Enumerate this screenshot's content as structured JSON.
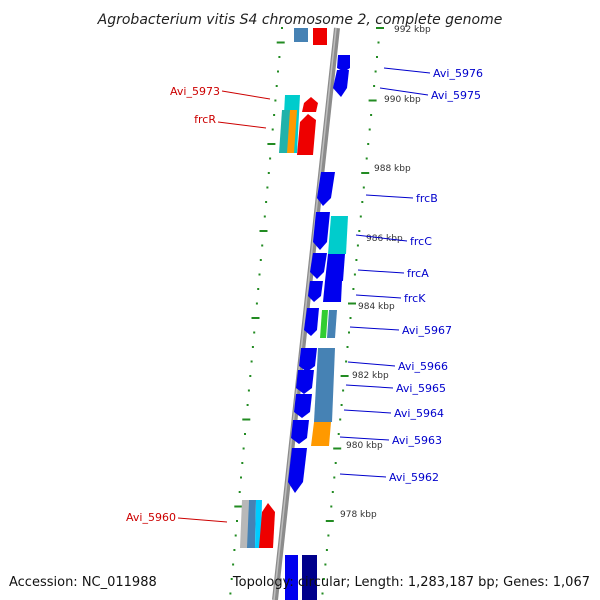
{
  "title": "Agrobacterium vitis S4 chromosome 2, complete genome",
  "accession": "Accession: NC_011988",
  "summary": "Topology: circular; Length: 1,283,187 bp; Genes: 1,067",
  "colors": {
    "backbone": "#808080",
    "tick": "#228b22",
    "right_label": "#0000cc",
    "left_label": "#cc0000"
  },
  "kbp_labels": [
    "992 kbp",
    "990 kbp",
    "988 kbp",
    "986 kbp",
    "984 kbp",
    "982 kbp",
    "980 kbp",
    "978 kbp"
  ],
  "right_genes": [
    "Avi_5976",
    "Avi_5975",
    "frcB",
    "frcC",
    "frcA",
    "frcK",
    "Avi_5967",
    "Avi_5966",
    "Avi_5965",
    "Avi_5964",
    "Avi_5963",
    "Avi_5962"
  ],
  "left_genes": [
    "Avi_5973",
    "frcR",
    "Avi_5960"
  ]
}
